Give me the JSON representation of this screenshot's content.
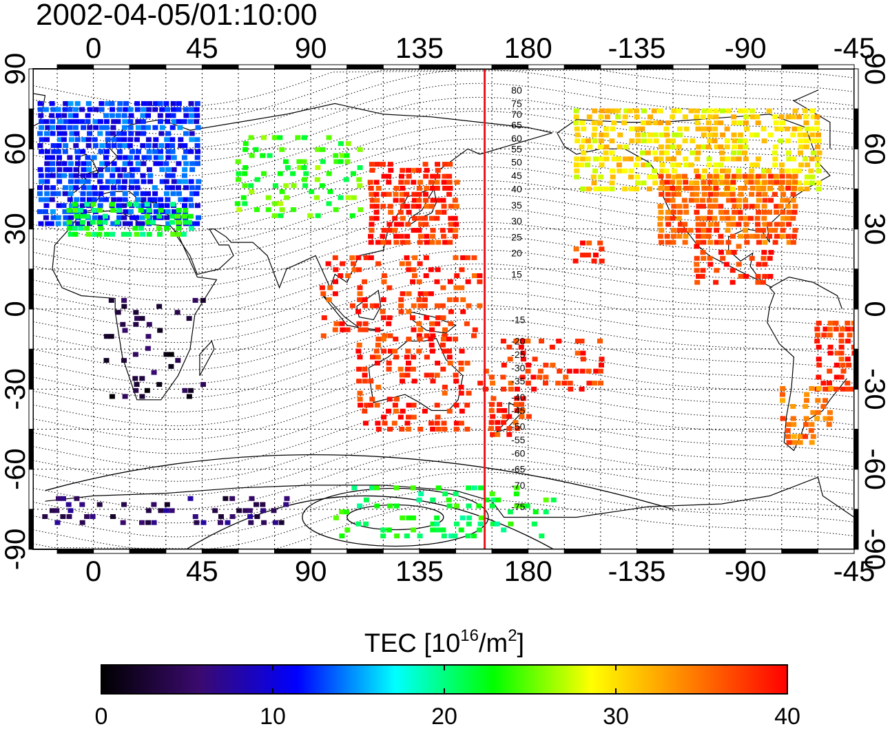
{
  "timestamp": "2002-04-05/01:10:00",
  "map": {
    "lon_ticks_top": [
      "0",
      "45",
      "90",
      "135",
      "180",
      "-135",
      "-90",
      "-45"
    ],
    "lon_ticks_bottom": [
      "0",
      "45",
      "90",
      "135",
      "180",
      "-135",
      "-90",
      "-45"
    ],
    "lat_ticks_left": [
      "90",
      "60",
      "30",
      "0",
      "-30",
      "-60",
      "-90"
    ],
    "lat_ticks_right": [
      "90",
      "60",
      "30",
      "0",
      "-30",
      "-60",
      "-90"
    ],
    "lon_range": [
      -25,
      315
    ],
    "lat_range": [
      -90,
      90
    ],
    "grid": true,
    "meridian_line": {
      "lon": 162,
      "color": "#e8141a"
    },
    "contour_labels": [
      {
        "text": "80",
        "lat": 82
      },
      {
        "text": "75",
        "lat": 77
      },
      {
        "text": "70",
        "lat": 73
      },
      {
        "text": "65",
        "lat": 69
      },
      {
        "text": "60",
        "lat": 64
      },
      {
        "text": "55",
        "lat": 60
      },
      {
        "text": "50",
        "lat": 55
      },
      {
        "text": "45",
        "lat": 50
      },
      {
        "text": "40",
        "lat": 45
      },
      {
        "text": "35",
        "lat": 39
      },
      {
        "text": "30",
        "lat": 33
      },
      {
        "text": "25",
        "lat": 27
      },
      {
        "text": "20",
        "lat": 21
      },
      {
        "text": "15",
        "lat": 13
      },
      {
        "text": "-15",
        "lat": -4
      },
      {
        "text": "-20",
        "lat": -12
      },
      {
        "text": "-25",
        "lat": -17
      },
      {
        "text": "-30",
        "lat": -22
      },
      {
        "text": "-35",
        "lat": -27
      },
      {
        "text": "-40",
        "lat": -33
      },
      {
        "text": "-45",
        "lat": -38
      },
      {
        "text": "-50",
        "lat": -44
      },
      {
        "text": "-55",
        "lat": -49
      },
      {
        "text": "-60",
        "lat": -54
      },
      {
        "text": "-65",
        "lat": -60
      },
      {
        "text": "-70",
        "lat": -66
      },
      {
        "text": "-75",
        "lat": -74
      }
    ]
  },
  "colorbar": {
    "title": "TEC  [10",
    "title_sup": "16",
    "title_mid": "/m",
    "title_sup2": "2",
    "title_end": "]",
    "ticks": [
      "0",
      "10",
      "20",
      "30",
      "40"
    ],
    "range": [
      0,
      40
    ],
    "stops": [
      "#000000",
      "#3a0a6e",
      "#0000ff",
      "#00ffff",
      "#00ff00",
      "#ffff00",
      "#ff8000",
      "#ff0000"
    ]
  },
  "tec_regions": [
    {
      "name": "europe",
      "lon": [
        -22,
        45
      ],
      "lat": [
        32,
        78
      ],
      "tec": 12,
      "density": 0.8
    },
    {
      "name": "north-africa-med",
      "lon": [
        -10,
        40
      ],
      "lat": [
        28,
        40
      ],
      "tec": 22,
      "density": 0.5
    },
    {
      "name": "siberia",
      "lon": [
        60,
        110
      ],
      "lat": [
        35,
        65
      ],
      "tec": 24,
      "density": 0.3
    },
    {
      "name": "east-asia",
      "lon": [
        115,
        150
      ],
      "lat": [
        25,
        55
      ],
      "tec": 38,
      "density": 0.7
    },
    {
      "name": "indonesia",
      "lon": [
        95,
        160
      ],
      "lat": [
        -10,
        20
      ],
      "tec": 38,
      "density": 0.3
    },
    {
      "name": "australia",
      "lon": [
        110,
        155
      ],
      "lat": [
        -45,
        -10
      ],
      "tec": 38,
      "density": 0.35
    },
    {
      "name": "new-zealand",
      "lon": [
        165,
        180
      ],
      "lat": [
        -47,
        -33
      ],
      "tec": 38,
      "density": 0.6
    },
    {
      "name": "pacific-islands",
      "lon": [
        160,
        210
      ],
      "lat": [
        -30,
        -10
      ],
      "tec": 38,
      "density": 0.3
    },
    {
      "name": "alaska-canada",
      "lon": [
        -160,
        -60
      ],
      "lat": [
        45,
        75
      ],
      "tec": 30,
      "density": 0.6
    },
    {
      "name": "usa",
      "lon": [
        -125,
        -70
      ],
      "lat": [
        25,
        50
      ],
      "tec": 36,
      "density": 0.85
    },
    {
      "name": "central-america",
      "lon": [
        -110,
        -80
      ],
      "lat": [
        10,
        25
      ],
      "tec": 38,
      "density": 0.4
    },
    {
      "name": "brazil",
      "lon": [
        -60,
        -35
      ],
      "lat": [
        -30,
        -5
      ],
      "tec": 38,
      "density": 0.45
    },
    {
      "name": "argentina",
      "lon": [
        -75,
        -55
      ],
      "lat": [
        -50,
        -28
      ],
      "tec": 35,
      "density": 0.35
    },
    {
      "name": "africa-dark",
      "lon": [
        5,
        45
      ],
      "lat": [
        -35,
        5
      ],
      "tec": 3,
      "density": 0.15
    },
    {
      "name": "antarctica-west",
      "lon": [
        -20,
        80
      ],
      "lat": [
        -80,
        -70
      ],
      "tec": 5,
      "density": 0.35
    },
    {
      "name": "antarctica-east",
      "lon": [
        100,
        190
      ],
      "lat": [
        -85,
        -65
      ],
      "tec": 22,
      "density": 0.25
    },
    {
      "name": "hawaii",
      "lon": [
        -160,
        -150
      ],
      "lat": [
        18,
        25
      ],
      "tec": 38,
      "density": 0.5
    }
  ]
}
